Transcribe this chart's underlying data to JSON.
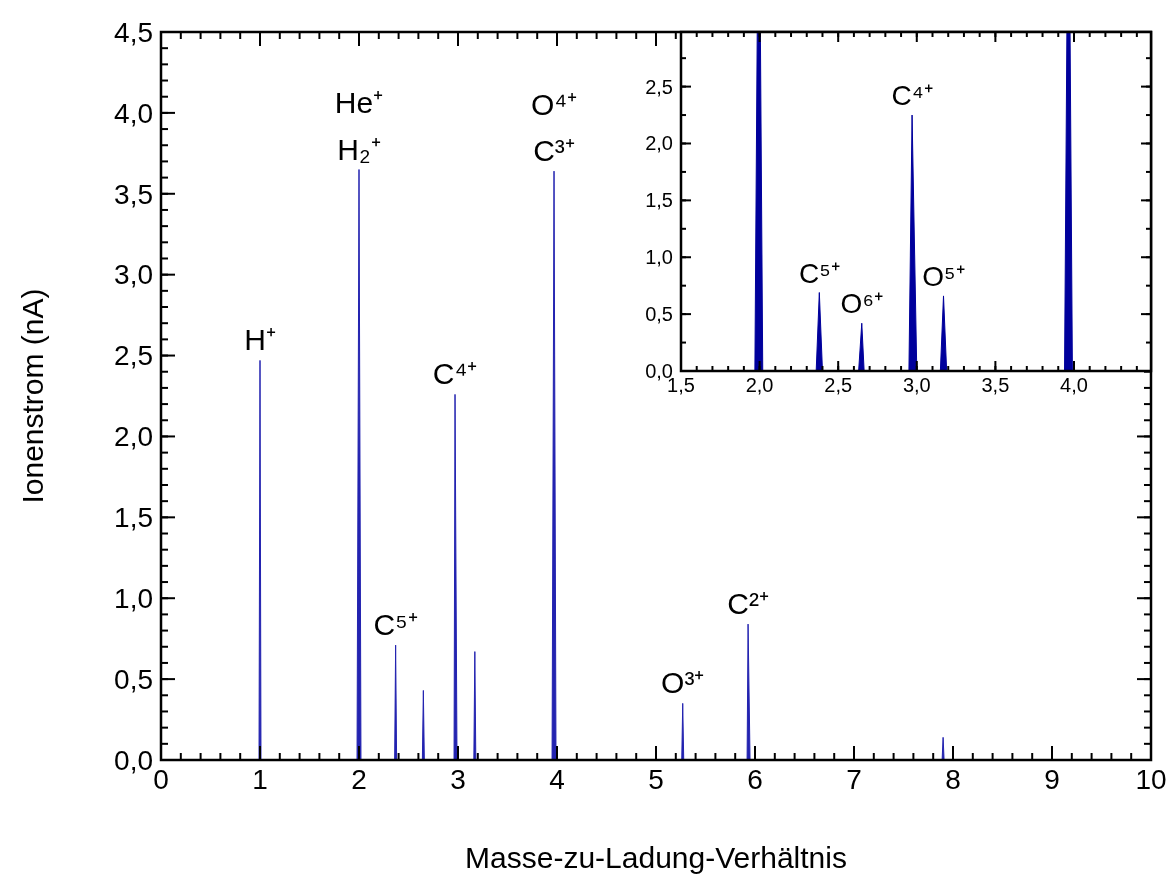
{
  "chart_data": [
    {
      "type": "area",
      "xlabel": "Masse-zu-Ladung-Verhältnis",
      "ylabel": "Ionenstrom (nA)",
      "xlim": [
        0,
        10
      ],
      "ylim": [
        0,
        4.5
      ],
      "xticks": [
        0,
        1,
        2,
        3,
        4,
        5,
        6,
        7,
        8,
        9,
        10
      ],
      "yticks": [
        {
          "value": 0,
          "label": "0,0"
        },
        {
          "value": 0.5,
          "label": "0,5"
        },
        {
          "value": 1,
          "label": "1,0"
        },
        {
          "value": 1.5,
          "label": "1,5"
        },
        {
          "value": 2,
          "label": "2,0"
        },
        {
          "value": 2.5,
          "label": "2,5"
        },
        {
          "value": 3,
          "label": "3,0"
        },
        {
          "value": 3.5,
          "label": "3,5"
        },
        {
          "value": 4,
          "label": "4,0"
        },
        {
          "value": 4.5,
          "label": "4,5"
        }
      ],
      "series": [
        {
          "color": "#2323b0",
          "x": [
            0.74,
            0.99,
            1.0,
            1.01,
            1.98,
            2.0,
            2.02,
            2.36,
            2.37,
            2.38,
            2.64,
            2.65,
            2.66,
            2.96,
            2.97,
            2.99,
            3.16,
            3.17,
            3.18,
            3.95,
            3.97,
            3.99,
            5.26,
            5.27,
            5.28,
            5.92,
            5.93,
            5.95,
            7.89,
            7.9,
            7.91,
            10
          ],
          "values": [
            0,
            0,
            2.47,
            0,
            0,
            3.65,
            0,
            0,
            0.71,
            0,
            0,
            0.43,
            0,
            0,
            2.26,
            0,
            0,
            0.67,
            0,
            0,
            3.64,
            0,
            0,
            0.35,
            0,
            0,
            0.84,
            0,
            0,
            0.14,
            0,
            0
          ]
        }
      ],
      "annotations": [
        {
          "text": "H⁺",
          "x": 1.0,
          "y": 2.47
        },
        {
          "text": "H₂⁺",
          "x": 2.0,
          "y": 3.65
        },
        {
          "text": "He⁺",
          "x": 2.0,
          "y": 3.65
        },
        {
          "text": "C⁵⁺",
          "x": 2.37,
          "y": 0.71
        },
        {
          "text": "C⁴⁺",
          "x": 2.97,
          "y": 2.26
        },
        {
          "text": "C³⁺",
          "x": 3.97,
          "y": 3.64
        },
        {
          "text": "O⁴⁺",
          "x": 3.97,
          "y": 3.64
        },
        {
          "text": "O³⁺",
          "x": 5.27,
          "y": 0.35
        },
        {
          "text": "C²⁺",
          "x": 5.93,
          "y": 0.84
        }
      ]
    },
    {
      "type": "area",
      "xlim": [
        1.5,
        4.49
      ],
      "ylim": [
        0,
        2.98
      ],
      "xticks": [
        {
          "value": 1.5,
          "label": "1,5"
        },
        {
          "value": 2,
          "label": "2,0"
        },
        {
          "value": 2.5,
          "label": "2,5"
        },
        {
          "value": 3,
          "label": "3,0"
        },
        {
          "value": 3.5,
          "label": "3,5"
        },
        {
          "value": 4,
          "label": "4,0"
        }
      ],
      "yticks": [
        {
          "value": 0,
          "label": "0,0"
        },
        {
          "value": 0.5,
          "label": "0,5"
        },
        {
          "value": 1,
          "label": "1,0"
        },
        {
          "value": 1.5,
          "label": "1,5"
        },
        {
          "value": 2,
          "label": "2,0"
        },
        {
          "value": 2.5,
          "label": "2,5"
        }
      ],
      "series": [
        {
          "color": "#00009c",
          "x": [
            1.5,
            1.97,
            1.985,
            2.005,
            2.02,
            2.36,
            2.38,
            2.4,
            2.63,
            2.65,
            2.665,
            2.95,
            2.97,
            3.0,
            3.15,
            3.17,
            3.19,
            3.94,
            3.955,
            3.975,
            3.99,
            4.49
          ],
          "values": [
            0,
            0,
            null,
            null,
            0,
            0,
            0.69,
            0,
            0,
            0.42,
            0,
            0,
            2.25,
            0,
            0,
            0.66,
            0,
            0,
            null,
            null,
            0,
            0
          ]
        }
      ],
      "annotations": [
        {
          "text": "C⁵⁺",
          "x": 2.38,
          "y": 0.69
        },
        {
          "text": "O⁶⁺",
          "x": 2.65,
          "y": 0.42
        },
        {
          "text": "C⁴⁺",
          "x": 2.97,
          "y": 2.25
        },
        {
          "text": "O⁵⁺",
          "x": 3.17,
          "y": 0.66
        }
      ]
    }
  ]
}
